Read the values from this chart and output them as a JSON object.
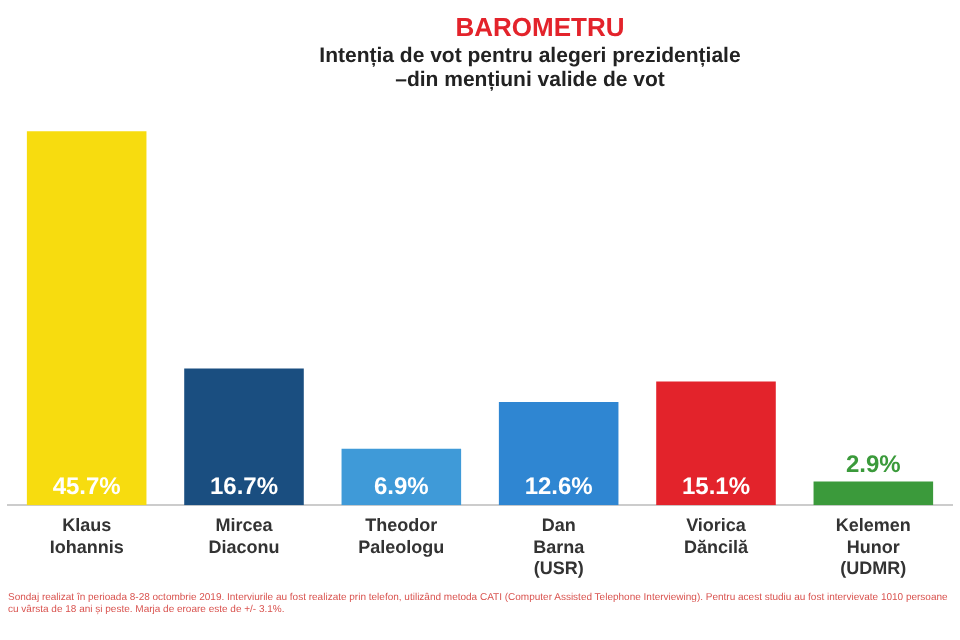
{
  "chart_data": {
    "type": "bar",
    "title": "BAROMETRU",
    "subtitle": "Intenția de vot pentru alegeri prezidențiale\n–din mențiuni valide de vot",
    "categories": [
      "Klaus\nIohannis",
      "Mircea\nDiaconu",
      "Theodor\nPaleologu",
      "Dan\nBarna\n(USR)",
      "Viorica\nDăncilă",
      "Kelemen\nHunor\n(UDMR)"
    ],
    "values": [
      45.7,
      16.7,
      6.9,
      12.6,
      15.1,
      2.9
    ],
    "colors": [
      "#f7dc0f",
      "#1a4e80",
      "#3f9ad8",
      "#2f86d2",
      "#e3232b",
      "#3b9a3b"
    ],
    "value_labels": [
      "45.7%",
      "16.7%",
      "6.9%",
      "12.6%",
      "15.1%",
      "2.9%"
    ],
    "annotations": [
      "Sondaj realizat în perioada 8-28 octombrie 2019. Interviurile au fost realizate prin telefon, utilizând metoda CATI (Computer Assisted Telephone Interviewing). Pentru acest studiu au fost intervievate 1010 persoane cu vârsta de 18 ani și peste. Marja de eroare este de +/- 3.1%."
    ],
    "legend": false,
    "grid": false
  }
}
